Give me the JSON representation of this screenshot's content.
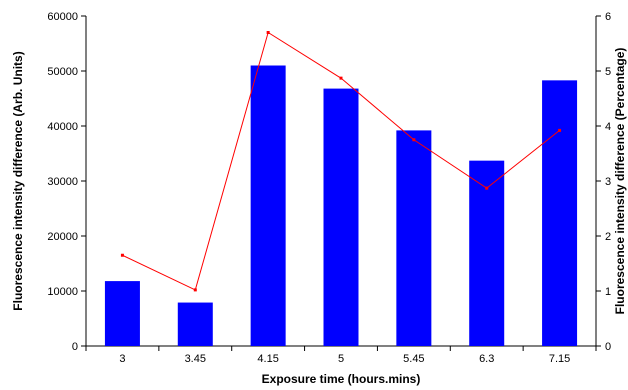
{
  "chart_data": {
    "type": "bar",
    "xlabel": "Exposure time (hours.mins)",
    "ylabel": "Fluorescence intensity difference (Arb. Units)",
    "y2label": "Fluorescence intensity difference (Percentage)",
    "categories": [
      "3",
      "3.45",
      "4.15",
      "5",
      "5.45",
      "6.3",
      "7.15"
    ],
    "ylim": [
      0,
      60000
    ],
    "yticks": [
      0,
      10000,
      20000,
      30000,
      40000,
      50000,
      60000
    ],
    "y2lim": [
      0,
      6
    ],
    "y2ticks": [
      0,
      1,
      2,
      3,
      4,
      5,
      6
    ],
    "grid": false,
    "legend": "none",
    "series": [
      {
        "type": "bar",
        "axis": "left",
        "color": "#0000ff",
        "values": [
          11800,
          7900,
          51000,
          46800,
          39200,
          33700,
          48300
        ]
      },
      {
        "type": "line",
        "axis": "right",
        "color": "#ff0000",
        "values": [
          1.65,
          1.02,
          5.7,
          4.87,
          3.75,
          2.87,
          3.92
        ]
      }
    ]
  }
}
